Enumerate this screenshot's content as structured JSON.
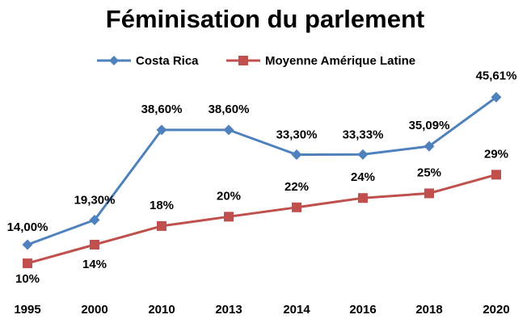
{
  "chart_data": {
    "type": "line",
    "title": "Féminisation du parlement",
    "xlabel": "",
    "ylabel": "",
    "ylim": [
      5,
      50
    ],
    "grid": false,
    "legend_position": "top",
    "categories": [
      "1995",
      "2000",
      "2010",
      "2013",
      "2014",
      "2016",
      "2018",
      "2020"
    ],
    "series": [
      {
        "name": "Costa Rica",
        "color": "#4F81BD",
        "marker": "diamond",
        "values": [
          14.0,
          19.3,
          38.6,
          38.6,
          33.3,
          33.33,
          35.09,
          45.61
        ],
        "labels": [
          "14,00%",
          "19,30%",
          "38,60%",
          "38,60%",
          "33,30%",
          "33,33%",
          "35,09%",
          "45,61%"
        ]
      },
      {
        "name": "Moyenne Amérique Latine",
        "color": "#C0504D",
        "marker": "square",
        "values": [
          10,
          14,
          18,
          20,
          22,
          24,
          25,
          29
        ],
        "labels": [
          "10%",
          "14%",
          "18%",
          "20%",
          "22%",
          "24%",
          "25%",
          "29%"
        ]
      }
    ]
  }
}
